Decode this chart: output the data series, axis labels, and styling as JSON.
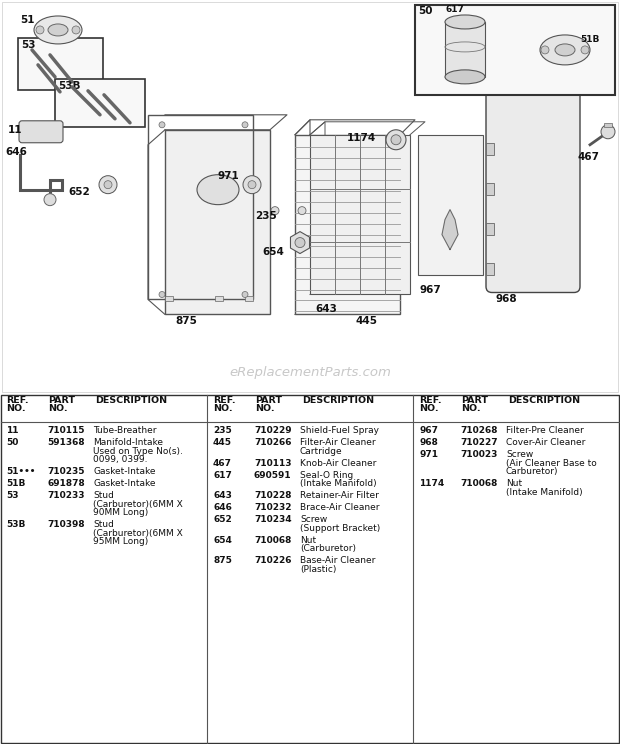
{
  "bg_color": "#ffffff",
  "watermark": "eReplacementParts.com",
  "parts_col1": [
    {
      "ref": "11",
      "part": "710115",
      "desc": [
        "Tube-Breather"
      ]
    },
    {
      "ref": "50",
      "part": "591368",
      "desc": [
        "Manifold-Intake",
        "Used on Type No(s).",
        "0099, 0399."
      ]
    },
    {
      "ref": "51•••",
      "part": "710235",
      "desc": [
        "Gasket-Intake"
      ]
    },
    {
      "ref": "51B",
      "part": "691878",
      "desc": [
        "Gasket-Intake"
      ]
    },
    {
      "ref": "53",
      "part": "710233",
      "desc": [
        "Stud",
        "(Carburetor)(6MM X",
        "90MM Long)"
      ]
    },
    {
      "ref": "53B",
      "part": "710398",
      "desc": [
        "Stud",
        "(Carburetor)(6MM X",
        "95MM Long)"
      ]
    }
  ],
  "parts_col2": [
    {
      "ref": "235",
      "part": "710229",
      "desc": [
        "Shield-Fuel Spray"
      ]
    },
    {
      "ref": "445",
      "part": "710266",
      "desc": [
        "Filter-Air Cleaner",
        "Cartridge"
      ]
    },
    {
      "ref": "467",
      "part": "710113",
      "desc": [
        "Knob-Air Cleaner"
      ]
    },
    {
      "ref": "617",
      "part": "690591",
      "desc": [
        "Seal-O Ring",
        "(Intake Manifold)"
      ]
    },
    {
      "ref": "643",
      "part": "710228",
      "desc": [
        "Retainer-Air Filter"
      ]
    },
    {
      "ref": "646",
      "part": "710232",
      "desc": [
        "Brace-Air Cleaner"
      ]
    },
    {
      "ref": "652",
      "part": "710234",
      "desc": [
        "Screw",
        "(Support Bracket)"
      ]
    },
    {
      "ref": "654",
      "part": "710068",
      "desc": [
        "Nut",
        "(Carburetor)"
      ]
    },
    {
      "ref": "875",
      "part": "710226",
      "desc": [
        "Base-Air Cleaner",
        "(Plastic)"
      ]
    }
  ],
  "parts_col3": [
    {
      "ref": "967",
      "part": "710268",
      "desc": [
        "Filter-Pre Cleaner"
      ]
    },
    {
      "ref": "968",
      "part": "710227",
      "desc": [
        "Cover-Air Cleaner"
      ]
    },
    {
      "ref": "971",
      "part": "710023",
      "desc": [
        "Screw",
        "(Air Cleaner Base to",
        "Carburetor)"
      ]
    },
    {
      "ref": "1174",
      "part": "710068",
      "desc": [
        "Nut",
        "(Intake Manifold)"
      ]
    }
  ]
}
